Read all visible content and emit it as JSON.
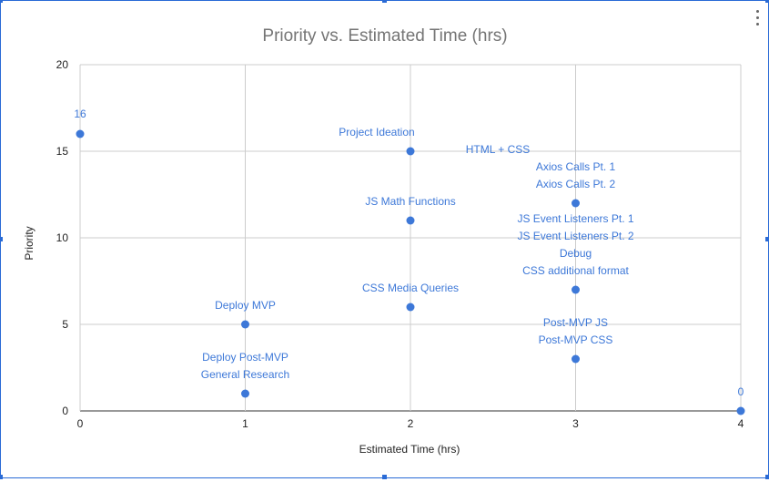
{
  "chart_data": {
    "type": "scatter",
    "title": "Priority vs. Estimated Time (hrs)",
    "xlabel": "Estimated Time (hrs)",
    "ylabel": "Priority",
    "xlim": [
      0,
      4
    ],
    "ylim": [
      0,
      20
    ],
    "x_ticks": [
      "0",
      "1",
      "2",
      "3",
      "4"
    ],
    "y_ticks": [
      "0",
      "5",
      "10",
      "15",
      "20"
    ],
    "grid": true,
    "legend": "none",
    "point_color": "#3d78d8",
    "label_color": "#3d78d8",
    "title_color": "#757575",
    "points": [
      {
        "x": 0,
        "y": 16,
        "label": "16"
      },
      {
        "x": 2,
        "y": 15,
        "label": "Project Ideation"
      },
      {
        "x": 2,
        "y": 15,
        "label": "HTML + CSS"
      },
      {
        "x": 3,
        "y": 12,
        "label": "Axios Calls Pt. 1"
      },
      {
        "x": 3,
        "y": 12,
        "label": "Axios Calls Pt. 2"
      },
      {
        "x": 2,
        "y": 11,
        "label": "JS Math Functions"
      },
      {
        "x": 3,
        "y": 7,
        "label": "JS Event Listeners Pt. 1"
      },
      {
        "x": 3,
        "y": 7,
        "label": "JS Event Listeners Pt. 2"
      },
      {
        "x": 3,
        "y": 7,
        "label": "Debug"
      },
      {
        "x": 3,
        "y": 7,
        "label": "CSS additional format"
      },
      {
        "x": 2,
        "y": 6,
        "label": "CSS Media Queries"
      },
      {
        "x": 1,
        "y": 5,
        "label": "Deploy MVP"
      },
      {
        "x": 3,
        "y": 3,
        "label": "Post-MVP JS"
      },
      {
        "x": 3,
        "y": 3,
        "label": "Post-MVP CSS"
      },
      {
        "x": 1,
        "y": 1,
        "label": "Deploy Post-MVP"
      },
      {
        "x": 1,
        "y": 1,
        "label": "General Research"
      },
      {
        "x": 4,
        "y": 0,
        "label": "0"
      }
    ]
  }
}
